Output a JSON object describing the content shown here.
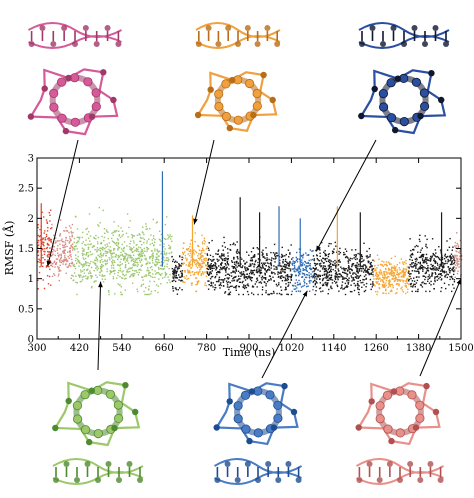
{
  "chart_data": {
    "type": "scatter",
    "xlabel": "Time (ns)",
    "ylabel": "RMSF (Å)",
    "xlim": [
      300,
      1500
    ],
    "ylim": [
      0,
      3
    ],
    "x_ticks": [
      300,
      420,
      540,
      660,
      780,
      900,
      1020,
      1140,
      1260,
      1380,
      1500
    ],
    "y_ticks": [
      0,
      0.5,
      1,
      1.5,
      2,
      2.5,
      3
    ],
    "x_tick_labels": [
      "300",
      "420",
      "540",
      "660",
      "780",
      "900",
      "1020",
      "1140",
      "1260",
      "1380",
      "1500"
    ],
    "y_tick_labels": [
      "0",
      "0.5",
      "1",
      "1.5",
      "2",
      "2.5",
      "3"
    ],
    "grid": false,
    "segments": [
      {
        "color": "#e0402a",
        "x_start": 300,
        "x_end": 340,
        "y_mean": 1.5,
        "y_low": 0.8,
        "y_high": 2.3
      },
      {
        "color": "#d98a84",
        "x_start": 340,
        "x_end": 400,
        "y_mean": 1.45,
        "y_low": 0.9,
        "y_high": 2.1
      },
      {
        "color": "#9bc86e",
        "x_start": 400,
        "x_end": 680,
        "y_mean": 1.35,
        "y_low": 0.75,
        "y_high": 2.4
      },
      {
        "color": "#1a1a1a",
        "x_start": 680,
        "x_end": 710,
        "y_mean": 1.1,
        "y_low": 0.75,
        "y_high": 1.6
      },
      {
        "color": "#f5a533",
        "x_start": 710,
        "x_end": 780,
        "y_mean": 1.3,
        "y_low": 0.8,
        "y_high": 2.1
      },
      {
        "color": "#1a1a1a",
        "x_start": 780,
        "x_end": 1020,
        "y_mean": 1.15,
        "y_low": 0.75,
        "y_high": 2.0
      },
      {
        "color": "#2f6db5",
        "x_start": 1020,
        "x_end": 1080,
        "y_mean": 1.15,
        "y_low": 0.8,
        "y_high": 1.9
      },
      {
        "color": "#1a1a1a",
        "x_start": 1080,
        "x_end": 1250,
        "y_mean": 1.15,
        "y_low": 0.75,
        "y_high": 1.9
      },
      {
        "color": "#f5a533",
        "x_start": 1250,
        "x_end": 1350,
        "y_mean": 1.05,
        "y_low": 0.75,
        "y_high": 1.6
      },
      {
        "color": "#1a1a1a",
        "x_start": 1350,
        "x_end": 1480,
        "y_mean": 1.2,
        "y_low": 0.8,
        "y_high": 2.0
      },
      {
        "color": "#d98a84",
        "x_start": 1480,
        "x_end": 1500,
        "y_mean": 1.4,
        "y_low": 0.9,
        "y_high": 1.9
      }
    ],
    "spikes": [
      {
        "x": 312,
        "y": 2.25,
        "color": "#e0402a"
      },
      {
        "x": 655,
        "y": 2.78,
        "color": "#2f6db5"
      },
      {
        "x": 740,
        "y": 2.05,
        "color": "#f5a533"
      },
      {
        "x": 875,
        "y": 2.35,
        "color": "#1a1a1a"
      },
      {
        "x": 930,
        "y": 2.1,
        "color": "#1a1a1a"
      },
      {
        "x": 985,
        "y": 2.2,
        "color": "#2f6db5"
      },
      {
        "x": 1045,
        "y": 2.0,
        "color": "#2f6db5"
      },
      {
        "x": 1150,
        "y": 2.2,
        "color": "#f5a533"
      },
      {
        "x": 1215,
        "y": 2.1,
        "color": "#1a1a1a"
      },
      {
        "x": 1445,
        "y": 2.1,
        "color": "#1a1a1a"
      }
    ],
    "callouts": [
      {
        "color": "#d65a9a",
        "accent": "#a03868",
        "from_x": 330,
        "from_y": 1.2
      },
      {
        "color": "#f0a03c",
        "accent": "#b86d18",
        "from_x": 745,
        "from_y": 1.9
      },
      {
        "color": "#2b4fa0",
        "accent": "#101830",
        "from_x": 1090,
        "from_y": 1.45
      },
      {
        "color": "#9cc86a",
        "accent": "#4e8a30",
        "from_x": 480,
        "from_y": 0.95
      },
      {
        "color": "#4a7cc4",
        "accent": "#1e4c90",
        "from_x": 1065,
        "from_y": 0.8
      },
      {
        "color": "#e8908a",
        "accent": "#b05050",
        "from_x": 1500,
        "from_y": 1.0
      }
    ]
  }
}
